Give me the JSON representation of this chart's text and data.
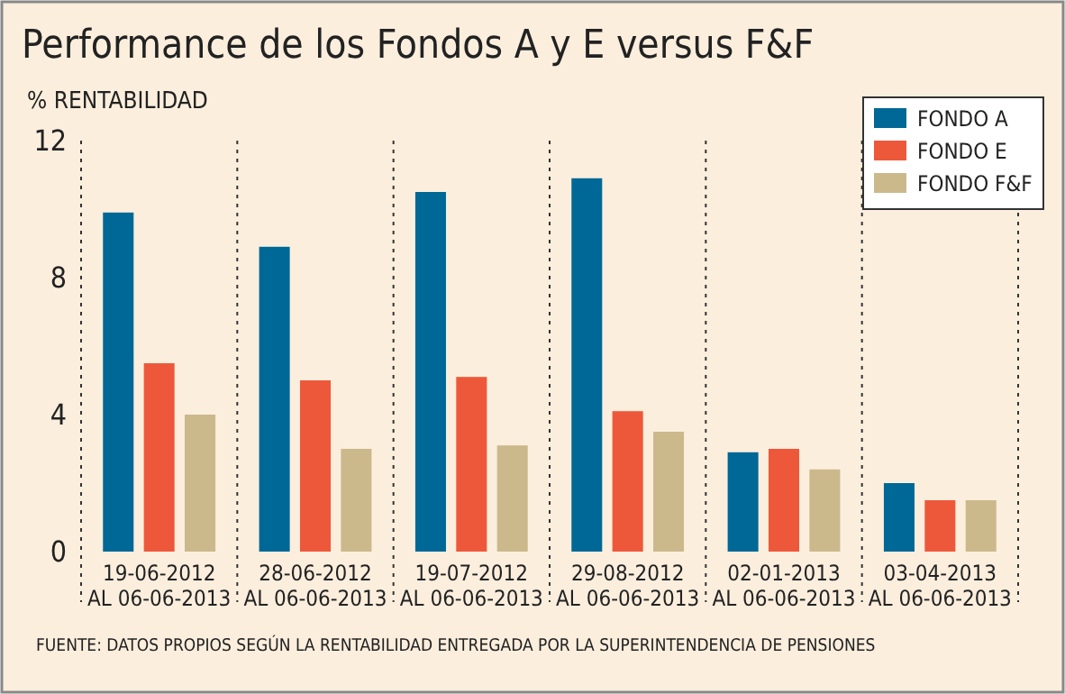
{
  "chart_data": {
    "type": "bar",
    "title": "Performance de los Fondos A y E versus F&F",
    "ylabel": "% RENTABILIDAD",
    "categories": [
      "19-06-2012\nAL 06-06-2013",
      "28-06-2012\nAL 06-06-2013",
      "19-07-2012\nAL 06-06-2013",
      "29-08-2012\nAL 06-06-2013",
      "02-01-2013\nAL 06-06-2013",
      "03-04-2013\nAL 06-06-2013"
    ],
    "series": [
      {
        "name": "FONDO A",
        "color": "#006896",
        "values": [
          9.9,
          8.9,
          10.5,
          10.9,
          2.9,
          2.0
        ]
      },
      {
        "name": "FONDO E",
        "color": "#ee583a",
        "values": [
          5.5,
          5.0,
          5.1,
          4.1,
          3.0,
          1.5
        ]
      },
      {
        "name": "FONDO F&F",
        "color": "#cbb98c",
        "values": [
          4.0,
          3.0,
          3.1,
          3.5,
          2.4,
          1.5
        ]
      }
    ],
    "ylim": [
      0,
      12
    ],
    "yticks": [
      0,
      4,
      8,
      12
    ],
    "grid": "x",
    "legend": "top right",
    "annotations": [
      "FUENTE: DATOS PROPIOS SEGÚN LA RENTABILIDAD ENTREGADA POR LA SUPERINTENDENCIA DE PENSIONES"
    ]
  }
}
